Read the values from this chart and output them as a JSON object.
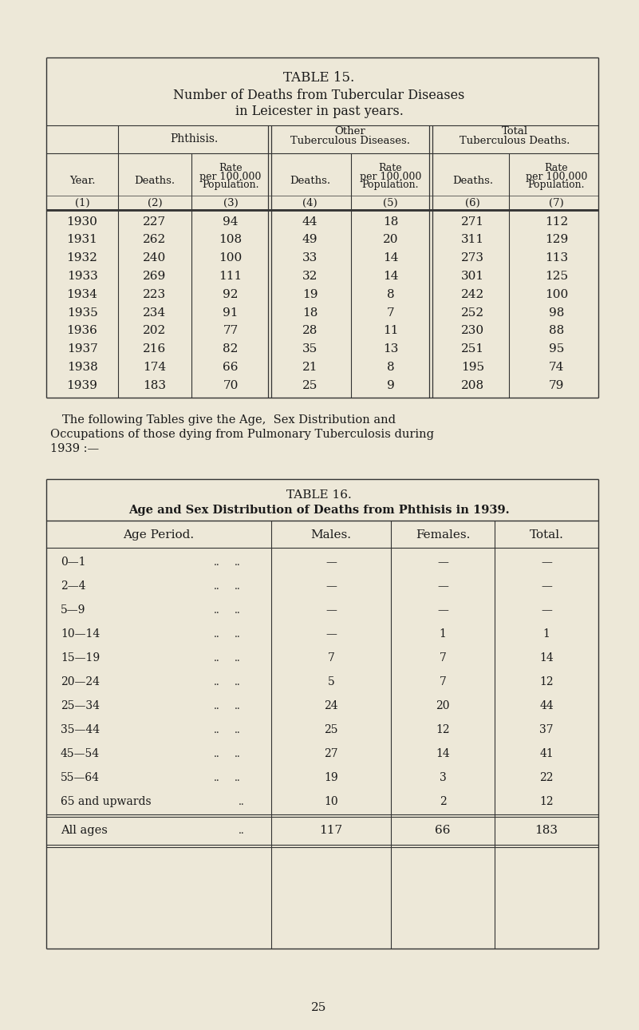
{
  "bg_color": "#ede8d8",
  "text_color": "#1a1a1a",
  "page_number": "25",
  "paragraph_line1": "The following Tables give the Age,  Sex Distribution and",
  "paragraph_line2": "Occupations of those dying from Pulmonary Tuberculosis during",
  "paragraph_line3": "1939 :—",
  "table15": {
    "title_line1": "TABLE 15.",
    "title_line2": "Number of Deaths from Tubercular Diseases",
    "title_line3": "in Leicester in past years.",
    "col_group1": "Phthisis.",
    "col_group2_l1": "Other",
    "col_group2_l2": "Tuberculous Diseases.",
    "col_group3_l1": "Total",
    "col_group3_l2": "Tuberculous Deaths.",
    "col_headers": [
      "Year.",
      "Deaths.",
      "Rate\nper 100,000\nPopulation.",
      "Deaths.",
      "Rate\nper 100,000\nPopulation.",
      "Deaths.",
      "Rate\nper 100,000\nPopulation."
    ],
    "col_numbers": [
      "(1)",
      "(2)",
      "(3)",
      "(4)",
      "(5)",
      "(6)",
      "(7)"
    ],
    "rows": [
      [
        "1930",
        "227",
        "94",
        "44",
        "18",
        "271",
        "112"
      ],
      [
        "1931",
        "262",
        "108",
        "49",
        "20",
        "311",
        "129"
      ],
      [
        "1932",
        "240",
        "100",
        "33",
        "14",
        "273",
        "113"
      ],
      [
        "1933",
        "269",
        "111",
        "32",
        "14",
        "301",
        "125"
      ],
      [
        "1934",
        "223",
        "92",
        "19",
        "8",
        "242",
        "100"
      ],
      [
        "1935",
        "234",
        "91",
        "18",
        "7",
        "252",
        "98"
      ],
      [
        "1936",
        "202",
        "77",
        "28",
        "11",
        "230",
        "88"
      ],
      [
        "1937",
        "216",
        "82",
        "35",
        "13",
        "251",
        "95"
      ],
      [
        "1938",
        "174",
        "66",
        "21",
        "8",
        "195",
        "74"
      ],
      [
        "1939",
        "183",
        "70",
        "25",
        "9",
        "208",
        "79"
      ]
    ]
  },
  "table16": {
    "title_line1": "TABLE 16.",
    "title_line2": "Age and Sex Distribution of Deaths from Phthisis in 1939.",
    "col_headers": [
      "Age Period.",
      "Males.",
      "Females.",
      "Total."
    ],
    "rows": [
      [
        "0—1",
        "—",
        "—",
        "—"
      ],
      [
        "2—4",
        "—",
        "—",
        "—"
      ],
      [
        "5—9",
        "—",
        "—",
        "—"
      ],
      [
        "10—14",
        "—",
        "1",
        "1"
      ],
      [
        "15—19",
        "7",
        "7",
        "14"
      ],
      [
        "20—24",
        "5",
        "7",
        "12"
      ],
      [
        "25—34",
        "24",
        "20",
        "44"
      ],
      [
        "35—44",
        "25",
        "12",
        "37"
      ],
      [
        "45—54",
        "27",
        "14",
        "41"
      ],
      [
        "55—64",
        "19",
        "3",
        "22"
      ],
      [
        "65 and upwards",
        "10",
        "2",
        "12"
      ]
    ],
    "footer_row": [
      "All ages",
      "117",
      "66",
      "183"
    ]
  }
}
